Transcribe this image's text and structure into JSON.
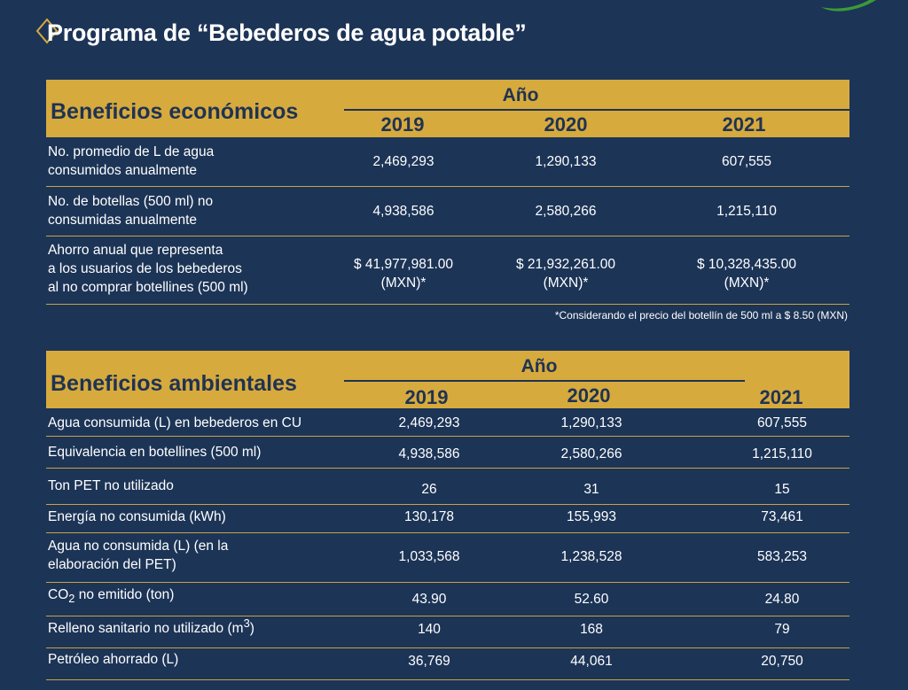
{
  "title": "Programa de “Bebederos de agua potable”",
  "economic": {
    "section_title": "Beneficios económicos",
    "year_header": "Año",
    "years": [
      "2019",
      "2020",
      "2021"
    ],
    "rows": [
      {
        "label": [
          "No. promedio de L de agua",
          "consumidos anualmente"
        ],
        "values": [
          [
            "2,469,293"
          ],
          [
            "1,290,133"
          ],
          [
            "607,555"
          ]
        ]
      },
      {
        "label": [
          "No. de botellas (500 ml) no",
          "consumidas anualmente"
        ],
        "values": [
          [
            "4,938,586"
          ],
          [
            "2,580,266"
          ],
          [
            "1,215,110"
          ]
        ]
      },
      {
        "label": [
          "Ahorro anual que representa",
          "a los usuarios de los bebederos",
          "al no comprar botellines (500 ml)"
        ],
        "values": [
          [
            "$ 41,977,981.00",
            "(MXN)*"
          ],
          [
            "$ 21,932,261.00",
            "(MXN)*"
          ],
          [
            "$ 10,328,435.00",
            "(MXN)*"
          ]
        ]
      }
    ],
    "footnote": "*Considerando el precio del botellín de 500 ml a $ 8.50 (MXN)"
  },
  "environmental": {
    "section_title": "Beneficios ambientales",
    "year_header": "Año",
    "years": [
      "2019",
      "2020",
      "2021"
    ],
    "rows": [
      {
        "label": [
          "Agua consumida (L) en bebederos en CU"
        ],
        "values": [
          "2,469,293",
          "1,290,133",
          "607,555"
        ]
      },
      {
        "label": [
          "Equivalencia en botellines (500 ml)"
        ],
        "values": [
          "4,938,586",
          "2,580,266",
          "1,215,110"
        ]
      },
      {
        "label": [
          "Ton PET no utilizado"
        ],
        "values": [
          "26",
          "31",
          "15"
        ]
      },
      {
        "label": [
          "Energía no consumida (kWh)"
        ],
        "values": [
          "130,178",
          "155,993",
          "73,461"
        ]
      },
      {
        "label": [
          "Agua no consumida (L) (en la",
          "elaboración del PET)"
        ],
        "values": [
          "1,033,568",
          "1,238,528",
          "583,253"
        ]
      },
      {
        "label_parts": [
          "CO",
          "2",
          " no emitido (ton)"
        ],
        "values": [
          "43.90",
          "52.60",
          "24.80"
        ]
      },
      {
        "label_parts": [
          "Relleno sanitario no utilizado (m",
          "3",
          ")"
        ],
        "values": [
          "140",
          "168",
          "79"
        ]
      },
      {
        "label": [
          "Petróleo ahorrado (L)"
        ],
        "values": [
          "36,769",
          "44,061",
          "20,750"
        ]
      }
    ]
  },
  "colors": {
    "background": "#1c3456",
    "header": "#d7aa3e",
    "header_text": "#1f3352",
    "rule": "#c9a247",
    "text": "#ffffff",
    "leaf": "#3a9a3a"
  }
}
